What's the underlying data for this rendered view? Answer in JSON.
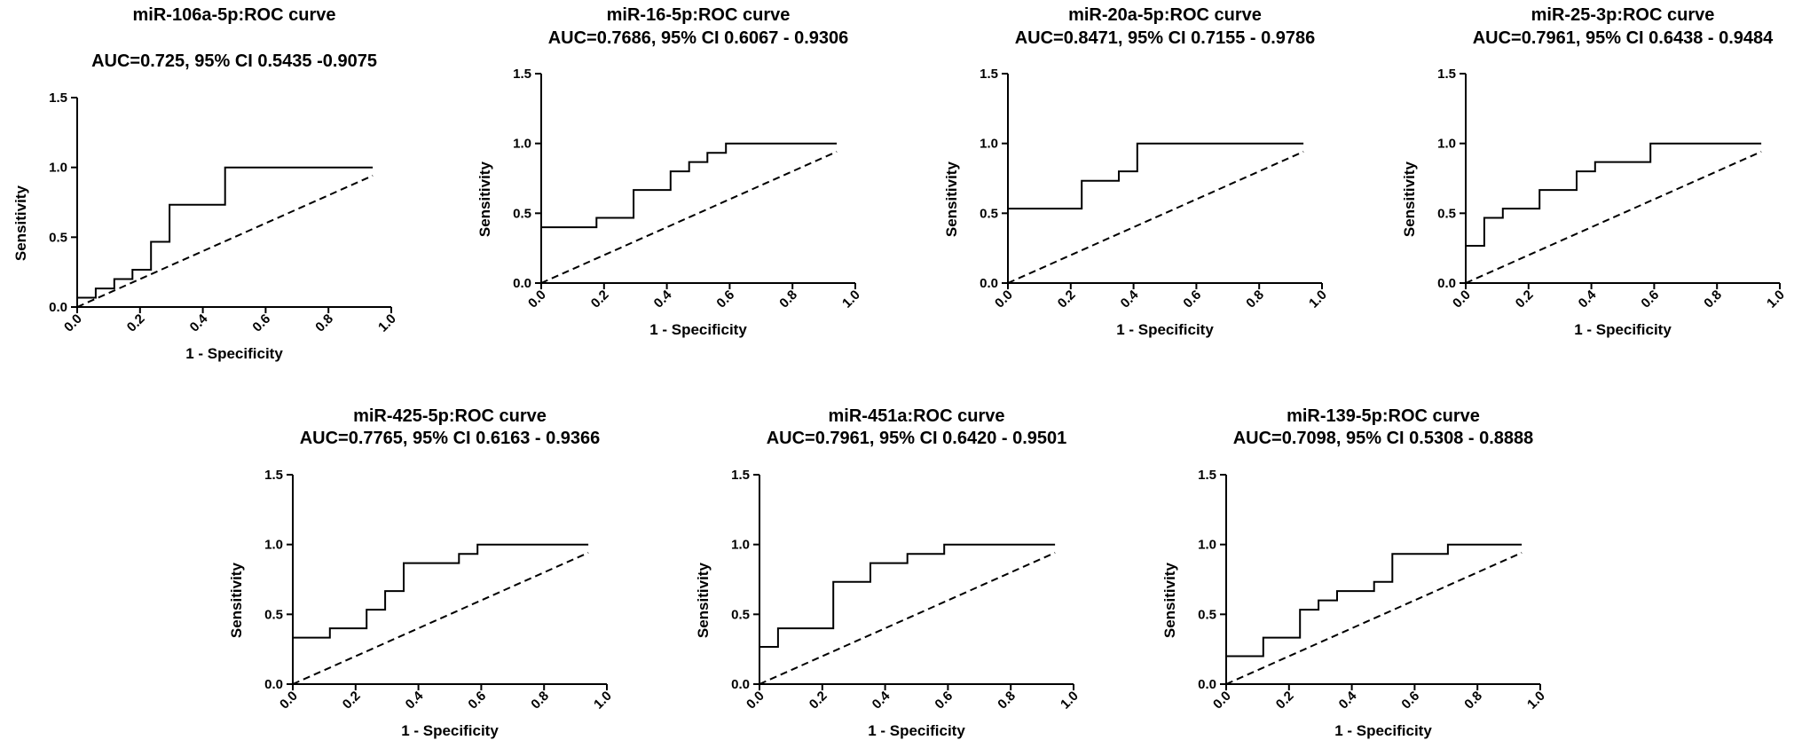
{
  "chart_data": [
    {
      "type": "line",
      "title": "miR-106a-5p:ROC curve",
      "subtitle": "AUC=0.725, 95% CI 0.5435 -0.9075",
      "xlabel": "1 - Specificity",
      "ylabel": "Sensitivity",
      "xlim": [
        0,
        1.0
      ],
      "ylim": [
        0,
        1.5
      ],
      "xticks": [
        "0.0",
        "0.2",
        "0.4",
        "0.6",
        "0.8",
        "1.0"
      ],
      "yticks": [
        "0.0",
        "0.5",
        "1.0",
        "1.5"
      ],
      "series": [
        {
          "kind": "roc",
          "x": [
            0,
            0,
            0.059,
            0.059,
            0.118,
            0.118,
            0.176,
            0.176,
            0.235,
            0.235,
            0.294,
            0.294,
            0.471,
            0.471,
            0.941
          ],
          "y": [
            0,
            0.067,
            0.067,
            0.133,
            0.133,
            0.2,
            0.2,
            0.267,
            0.267,
            0.467,
            0.467,
            0.733,
            0.733,
            1.0,
            1.0
          ]
        },
        {
          "kind": "reference",
          "x": [
            0,
            0.941
          ],
          "y": [
            0,
            0.941
          ]
        }
      ]
    },
    {
      "type": "line",
      "title": "miR-16-5p:ROC curve",
      "subtitle": "AUC=0.7686, 95% CI 0.6067 - 0.9306",
      "xlabel": "1 - Specificity",
      "ylabel": "Sensitivity",
      "xlim": [
        0,
        1.0
      ],
      "ylim": [
        0,
        1.5
      ],
      "xticks": [
        "0.0",
        "0.2",
        "0.4",
        "0.6",
        "0.8",
        "1.0"
      ],
      "yticks": [
        "0.0",
        "0.5",
        "1.0",
        "1.5"
      ],
      "series": [
        {
          "kind": "roc",
          "x": [
            0,
            0,
            0.176,
            0.176,
            0.294,
            0.294,
            0.412,
            0.412,
            0.471,
            0.471,
            0.529,
            0.529,
            0.588,
            0.588,
            0.941
          ],
          "y": [
            0,
            0.4,
            0.4,
            0.467,
            0.467,
            0.667,
            0.667,
            0.8,
            0.8,
            0.867,
            0.867,
            0.933,
            0.933,
            1.0,
            1.0
          ]
        },
        {
          "kind": "reference",
          "x": [
            0,
            0.941
          ],
          "y": [
            0,
            0.941
          ]
        }
      ]
    },
    {
      "type": "line",
      "title": "miR-20a-5p:ROC curve",
      "subtitle": "AUC=0.8471, 95% CI 0.7155 - 0.9786",
      "xlabel": "1 - Specificity",
      "ylabel": "Sensitivity",
      "xlim": [
        0,
        1.0
      ],
      "ylim": [
        0,
        1.5
      ],
      "xticks": [
        "0.0",
        "0.2",
        "0.4",
        "0.6",
        "0.8",
        "1.0"
      ],
      "yticks": [
        "0.0",
        "0.5",
        "1.0",
        "1.5"
      ],
      "series": [
        {
          "kind": "roc",
          "x": [
            0,
            0,
            0.235,
            0.235,
            0.353,
            0.353,
            0.412,
            0.412,
            0.941
          ],
          "y": [
            0,
            0.533,
            0.533,
            0.733,
            0.733,
            0.8,
            0.8,
            1.0,
            1.0
          ]
        },
        {
          "kind": "reference",
          "x": [
            0,
            0.941
          ],
          "y": [
            0,
            0.941
          ]
        }
      ]
    },
    {
      "type": "line",
      "title": "miR-25-3p:ROC curve",
      "subtitle": "AUC=0.7961, 95% CI 0.6438 - 0.9484",
      "xlabel": "1 - Specificity",
      "ylabel": "Sensitivity",
      "xlim": [
        0,
        1.0
      ],
      "ylim": [
        0,
        1.5
      ],
      "xticks": [
        "0.0",
        "0.2",
        "0.4",
        "0.6",
        "0.8",
        "1.0"
      ],
      "yticks": [
        "0.0",
        "0.5",
        "1.0",
        "1.5"
      ],
      "series": [
        {
          "kind": "roc",
          "x": [
            0,
            0,
            0.059,
            0.059,
            0.118,
            0.118,
            0.235,
            0.235,
            0.353,
            0.353,
            0.412,
            0.412,
            0.588,
            0.588,
            0.941
          ],
          "y": [
            0,
            0.267,
            0.267,
            0.467,
            0.467,
            0.533,
            0.533,
            0.667,
            0.667,
            0.8,
            0.8,
            0.867,
            0.867,
            1.0,
            1.0
          ]
        },
        {
          "kind": "reference",
          "x": [
            0,
            0.941
          ],
          "y": [
            0,
            0.941
          ]
        }
      ]
    },
    {
      "type": "line",
      "title": "miR-425-5p:ROC curve",
      "subtitle": "AUC=0.7765, 95% CI 0.6163 - 0.9366",
      "xlabel": "1 - Specificity",
      "ylabel": "Sensitivity",
      "xlim": [
        0,
        1.0
      ],
      "ylim": [
        0,
        1.5
      ],
      "xticks": [
        "0.0",
        "0.2",
        "0.4",
        "0.6",
        "0.8",
        "1.0"
      ],
      "yticks": [
        "0.0",
        "0.5",
        "1.0",
        "1.5"
      ],
      "series": [
        {
          "kind": "roc",
          "x": [
            0,
            0,
            0.118,
            0.118,
            0.235,
            0.235,
            0.294,
            0.294,
            0.353,
            0.353,
            0.529,
            0.529,
            0.588,
            0.588,
            0.941
          ],
          "y": [
            0,
            0.333,
            0.333,
            0.4,
            0.4,
            0.533,
            0.533,
            0.667,
            0.667,
            0.867,
            0.867,
            0.933,
            0.933,
            1.0,
            1.0
          ]
        },
        {
          "kind": "reference",
          "x": [
            0,
            0.941
          ],
          "y": [
            0,
            0.941
          ]
        }
      ]
    },
    {
      "type": "line",
      "title": "miR-451a:ROC curve",
      "subtitle": "AUC=0.7961, 95% CI 0.6420 - 0.9501",
      "xlabel": "1 - Specificity",
      "ylabel": "Sensitivity",
      "xlim": [
        0,
        1.0
      ],
      "ylim": [
        0,
        1.5
      ],
      "xticks": [
        "0.0",
        "0.2",
        "0.4",
        "0.6",
        "0.8",
        "1.0"
      ],
      "yticks": [
        "0.0",
        "0.5",
        "1.0",
        "1.5"
      ],
      "series": [
        {
          "kind": "roc",
          "x": [
            0,
            0,
            0.059,
            0.059,
            0.235,
            0.235,
            0.353,
            0.353,
            0.471,
            0.471,
            0.588,
            0.588,
            0.941
          ],
          "y": [
            0,
            0.267,
            0.267,
            0.4,
            0.4,
            0.733,
            0.733,
            0.867,
            0.867,
            0.933,
            0.933,
            1.0,
            1.0
          ]
        },
        {
          "kind": "reference",
          "x": [
            0,
            0.941
          ],
          "y": [
            0,
            0.941
          ]
        }
      ]
    },
    {
      "type": "line",
      "title": "miR-139-5p:ROC curve",
      "subtitle": "AUC=0.7098, 95% CI 0.5308 - 0.8888",
      "xlabel": "1 - Specificity",
      "ylabel": "Sensitivity",
      "xlim": [
        0,
        1.0
      ],
      "ylim": [
        0,
        1.5
      ],
      "xticks": [
        "0.0",
        "0.2",
        "0.4",
        "0.6",
        "0.8",
        "1.0"
      ],
      "yticks": [
        "0.0",
        "0.5",
        "1.0",
        "1.5"
      ],
      "series": [
        {
          "kind": "roc",
          "x": [
            0,
            0,
            0.118,
            0.118,
            0.235,
            0.235,
            0.294,
            0.294,
            0.353,
            0.353,
            0.471,
            0.471,
            0.529,
            0.529,
            0.706,
            0.706,
            0.941
          ],
          "y": [
            0,
            0.2,
            0.2,
            0.333,
            0.333,
            0.533,
            0.533,
            0.6,
            0.6,
            0.667,
            0.667,
            0.733,
            0.733,
            0.933,
            0.933,
            1.0,
            1.0
          ]
        },
        {
          "kind": "reference",
          "x": [
            0,
            0.941
          ],
          "y": [
            0,
            0.941
          ]
        }
      ]
    }
  ]
}
